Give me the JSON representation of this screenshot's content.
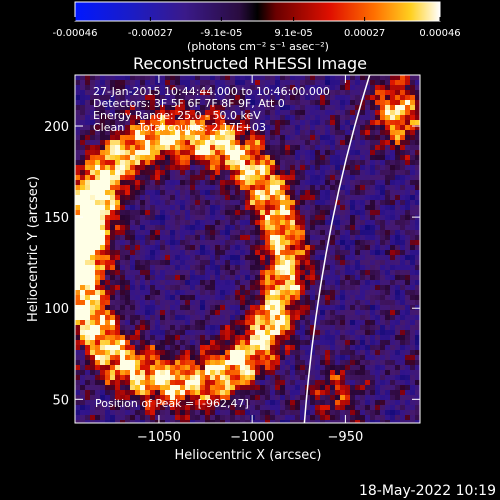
{
  "footer_timestamp": "18-May-2022 10:19",
  "colorbar": {
    "ticks": [
      "-0.00046",
      "-0.00027",
      "-9.1e-05",
      "9.1e-05",
      "0.00027",
      "0.00046"
    ],
    "unit_label": "(photons cm⁻² s⁻¹ asec⁻²)"
  },
  "chart_data": {
    "type": "heatmap",
    "title": "Reconstructed RHESSI Image",
    "xlabel": "Heliocentric X (arcsec)",
    "ylabel": "Heliocentric Y (arcsec)",
    "xlim": [
      -1095,
      -910
    ],
    "ylim": [
      37,
      228
    ],
    "x_ticks": [
      -1050,
      -1000,
      -950
    ],
    "x_tick_labels": [
      "−1050",
      "−1000",
      "−950"
    ],
    "y_ticks": [
      50,
      100,
      150,
      200
    ],
    "y_tick_labels": [
      "50",
      "100",
      "150",
      "200"
    ],
    "value_range": [
      -0.00046,
      0.00046
    ],
    "colormap": "rainbow blue-purple-red-orange-yellow-white",
    "info_lines": [
      "27-Jan-2015 10:44:44.000 to 10:46:00.000",
      "Detectors: 3F 5F 6F 7F 8F 9F, Att 0",
      "Energy Range: 25.0 - 50.0 keV",
      "Clean    Total counts: 2.17E+03"
    ],
    "peak_annotation": "Position of Peak = [-962,47]",
    "peak": [
      -962,
      47
    ],
    "limb_line": true,
    "colors": {
      "limb": "#ffffff",
      "background": "#000000"
    }
  }
}
